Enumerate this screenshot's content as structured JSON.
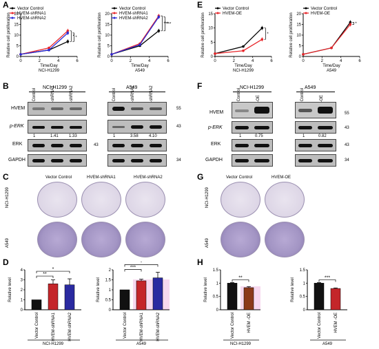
{
  "panels": {
    "A": "A",
    "B": "B",
    "C": "C",
    "D": "D",
    "E": "E",
    "F": "F",
    "G": "G",
    "H": "H"
  },
  "ylabel_prolif": "Relative cell proliferation",
  "xlabel_time": "Time/Day",
  "cell_nci": "NCI-H1299",
  "cell_a549": "A549",
  "lane_vc": "Vector Control",
  "lane_sh1": "HVEM-shRNA1",
  "lane_sh2": "HVEM-shRNA2",
  "lane_oe": "HVEM-OE",
  "rel_level": "Relative level",
  "sig": {
    "one": "*",
    "two": "**",
    "three": "***"
  },
  "blotB": {
    "rows": [
      "HVEM",
      "p-ERK",
      "ERK",
      "GAPDH"
    ],
    "nci_values": [
      "1",
      "1.41",
      "1.33"
    ],
    "a549_values": [
      "1",
      "3.58",
      "4.10"
    ],
    "mw": [
      "55",
      "43",
      "43",
      "34"
    ]
  },
  "blotF": {
    "rows": [
      "HVEM",
      "p-ERK",
      "ERK",
      "GAPDH"
    ],
    "nci_values": [
      "1",
      "0.75"
    ],
    "a549_values": [
      "1",
      "0.82"
    ],
    "mw": [
      "55",
      "43",
      "43",
      "34"
    ]
  },
  "colors": {
    "vc": "#000000",
    "sh1": "#e8262a",
    "sh2": "#2b2bd6",
    "oe": "#e8262a",
    "barD_vc": "#111111",
    "barD_sh1": "#c4262a",
    "barD_sh2": "#2a2aa0",
    "barH_nci_oe": "#8b3a1a",
    "barH_a549_oe": "#c4262a",
    "pink": "#f7d9ef"
  },
  "chart_data": [
    {
      "type": "line",
      "panel": "A-left",
      "xlabel": "Time/Day",
      "ylabel": "Relative cell proliferation",
      "subtitle": "NCI-H1299",
      "xlim": [
        0,
        6
      ],
      "ylim": [
        0,
        20
      ],
      "xticks": [
        0,
        2,
        4,
        6
      ],
      "yticks": [
        0,
        5,
        10,
        15,
        20
      ],
      "x": [
        0,
        3,
        5
      ],
      "series": [
        {
          "name": "Vector Control",
          "values": [
            1,
            3,
            7
          ]
        },
        {
          "name": "HVEM-shRNA1",
          "values": [
            1,
            4,
            12
          ]
        },
        {
          "name": "HVEM-shRNA2",
          "values": [
            1,
            3,
            11
          ]
        }
      ],
      "annotations": [
        "*",
        "*"
      ]
    },
    {
      "type": "line",
      "panel": "A-right",
      "xlabel": "Time/Day",
      "ylabel": "Relative cell proliferation",
      "subtitle": "A549",
      "xlim": [
        0,
        6
      ],
      "ylim": [
        0,
        20
      ],
      "xticks": [
        0,
        2,
        4,
        6
      ],
      "yticks": [
        0,
        5,
        10,
        15,
        20
      ],
      "x": [
        0,
        3,
        5
      ],
      "series": [
        {
          "name": "Vector Control",
          "values": [
            1,
            5,
            12
          ]
        },
        {
          "name": "HVEM-shRNA1",
          "values": [
            1,
            6,
            19
          ]
        },
        {
          "name": "HVEM-shRNA2",
          "values": [
            1,
            5.5,
            18.5
          ]
        }
      ],
      "annotations": [
        "***",
        "***"
      ]
    },
    {
      "type": "line",
      "panel": "E-left",
      "xlabel": "Time/Day",
      "ylabel": "Relative cell proliferation",
      "subtitle": "NCI-H1299",
      "xlim": [
        0,
        6
      ],
      "ylim": [
        0,
        15
      ],
      "xticks": [
        0,
        2,
        4,
        6
      ],
      "yticks": [
        0,
        5,
        10,
        15
      ],
      "x": [
        0,
        3,
        5
      ],
      "series": [
        {
          "name": "Vector Control",
          "values": [
            1,
            3.5,
            10
          ]
        },
        {
          "name": "HVEM-OE",
          "values": [
            1,
            2,
            6
          ]
        }
      ],
      "annotations": [
        "*"
      ]
    },
    {
      "type": "line",
      "panel": "E-right",
      "xlabel": "Time/Day",
      "ylabel": "Relative cell proliferation",
      "subtitle": "A549",
      "xlim": [
        0,
        6
      ],
      "ylim": [
        0,
        20
      ],
      "xticks": [
        0,
        2,
        4,
        6
      ],
      "yticks": [
        0,
        5,
        10,
        15,
        20
      ],
      "x": [
        0,
        3,
        5
      ],
      "series": [
        {
          "name": "Vector Control",
          "values": [
            1,
            4,
            16
          ]
        },
        {
          "name": "HVEM-OE",
          "values": [
            1,
            4,
            15
          ]
        }
      ],
      "annotations": [
        "*"
      ]
    },
    {
      "type": "bar",
      "panel": "D-left",
      "ylabel": "Relative level",
      "subtitle": "NCI-H1299",
      "categories": [
        "Vector Control",
        "HVEM-shRNA1",
        "HVEM-shRNA2"
      ],
      "values": [
        1,
        2.6,
        2.5
      ],
      "errors": [
        0,
        0.4,
        0.6
      ],
      "ylim": [
        0,
        4
      ],
      "yticks": [
        0,
        1,
        2,
        3,
        4
      ],
      "annotations": [
        "**",
        "*"
      ]
    },
    {
      "type": "bar",
      "panel": "D-right",
      "ylabel": "Relative level",
      "subtitle": "A549",
      "categories": [
        "Vector Control",
        "HVEM-shRNA1",
        "HVEM-shRNA2"
      ],
      "values": [
        1,
        1.45,
        1.6
      ],
      "errors": [
        0,
        0.08,
        0.28
      ],
      "ylim": [
        0,
        2.0
      ],
      "yticks": [
        0,
        0.5,
        1.0,
        1.5,
        2.0
      ],
      "annotations": [
        "***",
        "*"
      ]
    },
    {
      "type": "bar",
      "panel": "H-left",
      "ylabel": "Relative level",
      "subtitle": "NCI-H1299",
      "categories": [
        "Vector Control",
        "HVEM -OE"
      ],
      "values": [
        1,
        0.83
      ],
      "errors": [
        0.02,
        0.04
      ],
      "ylim": [
        0,
        1.5
      ],
      "yticks": [
        0,
        0.5,
        1.0,
        1.5
      ],
      "annotations": [
        "**"
      ]
    },
    {
      "type": "bar",
      "panel": "H-right",
      "ylabel": "Relative level",
      "subtitle": "A549",
      "categories": [
        "Vector Control",
        "HVEM -OE"
      ],
      "values": [
        1,
        0.8
      ],
      "errors": [
        0.02,
        0.02
      ],
      "ylim": [
        0,
        1.5
      ],
      "yticks": [
        0,
        0.5,
        1.0,
        1.5
      ],
      "annotations": [
        "***"
      ]
    }
  ]
}
